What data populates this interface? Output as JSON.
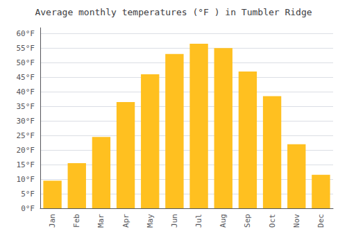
{
  "chart_data": {
    "type": "bar",
    "title": "Average monthly temperatures (°F ) in Tumbler Ridge",
    "categories": [
      "Jan",
      "Feb",
      "Mar",
      "Apr",
      "May",
      "Jun",
      "Jul",
      "Aug",
      "Sep",
      "Oct",
      "Nov",
      "Dec"
    ],
    "values": [
      9.5,
      15.5,
      24.5,
      36.5,
      46.0,
      53.0,
      56.5,
      55.0,
      47.0,
      38.5,
      22.0,
      11.5
    ],
    "color": "#FFC020",
    "ylim": [
      0,
      62
    ],
    "yticks": [
      {
        "value": 0,
        "label": "0°F"
      },
      {
        "value": 5,
        "label": "5°F"
      },
      {
        "value": 10,
        "label": "10°F"
      },
      {
        "value": 15,
        "label": "15°F"
      },
      {
        "value": 20,
        "label": "20°F"
      },
      {
        "value": 25,
        "label": "25°F"
      },
      {
        "value": 30,
        "label": "30°F"
      },
      {
        "value": 35,
        "label": "35°F"
      },
      {
        "value": 40,
        "label": "40°F"
      },
      {
        "value": 45,
        "label": "45°F"
      },
      {
        "value": 50,
        "label": "50°F"
      },
      {
        "value": 55,
        "label": "55°F"
      },
      {
        "value": 60,
        "label": "60°F"
      }
    ],
    "grid": true
  }
}
